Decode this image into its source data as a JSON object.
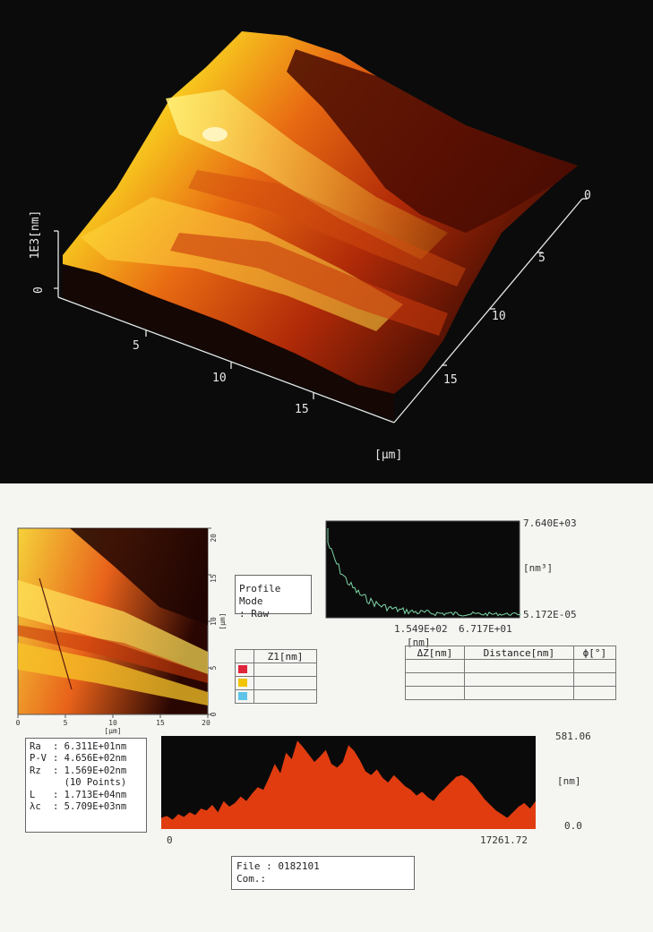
{
  "view3d": {
    "z_axis_label": "1E3[nm]",
    "z_tick_0": "0",
    "x_ticks": [
      "5",
      "10",
      "15"
    ],
    "y_ticks": [
      "0",
      "5",
      "10",
      "15"
    ],
    "unit_label": "[μm]"
  },
  "map2d": {
    "bottom_ticks": [
      "0",
      "5",
      "10",
      "15",
      "20"
    ],
    "right_ticks": [
      "20",
      "15",
      "10",
      "5",
      "0"
    ],
    "bottom_unit": "[μm]",
    "right_unit": "[μm]"
  },
  "profile_mode": {
    "line1": "Profile Mode",
    "line2": ":  Raw"
  },
  "psd": {
    "y_max": "7.640E+03",
    "y_unit": "[nm³]",
    "y_min": "5.172E-05",
    "x_left": "1.549E+02",
    "x_right": "6.717E+01",
    "x_unit": "[nm]"
  },
  "z_table": {
    "header": "Z1[nm]",
    "swatch_colors": [
      "#e0243a",
      "#f0c400",
      "#5fc4e8"
    ]
  },
  "distance_table": {
    "headers": [
      "ΔZ[nm]",
      "Distance[nm]",
      "ϕ[°]"
    ]
  },
  "roughness": {
    "rows": [
      {
        "label": "Ra",
        "value": ": 6.311E+01nm"
      },
      {
        "label": "P-V",
        "value": ": 4.656E+02nm"
      },
      {
        "label": "Rz",
        "value": ": 1.569E+02nm"
      },
      {
        "label": "",
        "value": "  (10 Points)"
      },
      {
        "label": "L",
        "value": ": 1.713E+04nm"
      },
      {
        "label": "λc",
        "value": ": 5.709E+03nm"
      }
    ]
  },
  "profile": {
    "y_max": "581.06",
    "y_unit": "[nm]",
    "y_min": "0.0",
    "x_min": "0",
    "x_max": "17261.72",
    "fill_color": "#e03c10"
  },
  "file_box": {
    "file_label": "File",
    "file_value": ": 0182101",
    "com_label": "Com.",
    "com_value": ":"
  }
}
